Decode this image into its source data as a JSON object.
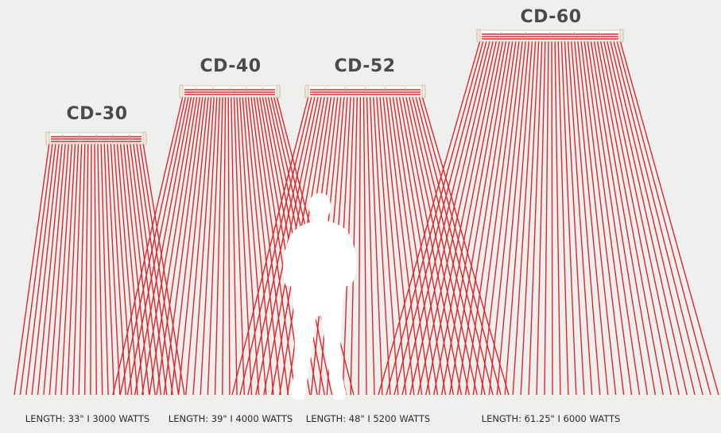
{
  "heaters": [
    {
      "model": "CD-30",
      "spec": "LENGTH: 33\" I 3000 WATTS"
    },
    {
      "model": "CD-40",
      "spec": "LENGTH: 39\" I 4000 WATTS"
    },
    {
      "model": "CD-52",
      "spec": "LENGTH: 48\" I 5200 WATTS"
    },
    {
      "model": "CD-60",
      "spec": "LENGTH: 61.25\" I 6000 WATTS"
    }
  ],
  "colors": {
    "background": "#efefed",
    "beam": "#e0262a",
    "heater_body": "#ffffff",
    "silhouette": "#ffffff"
  }
}
